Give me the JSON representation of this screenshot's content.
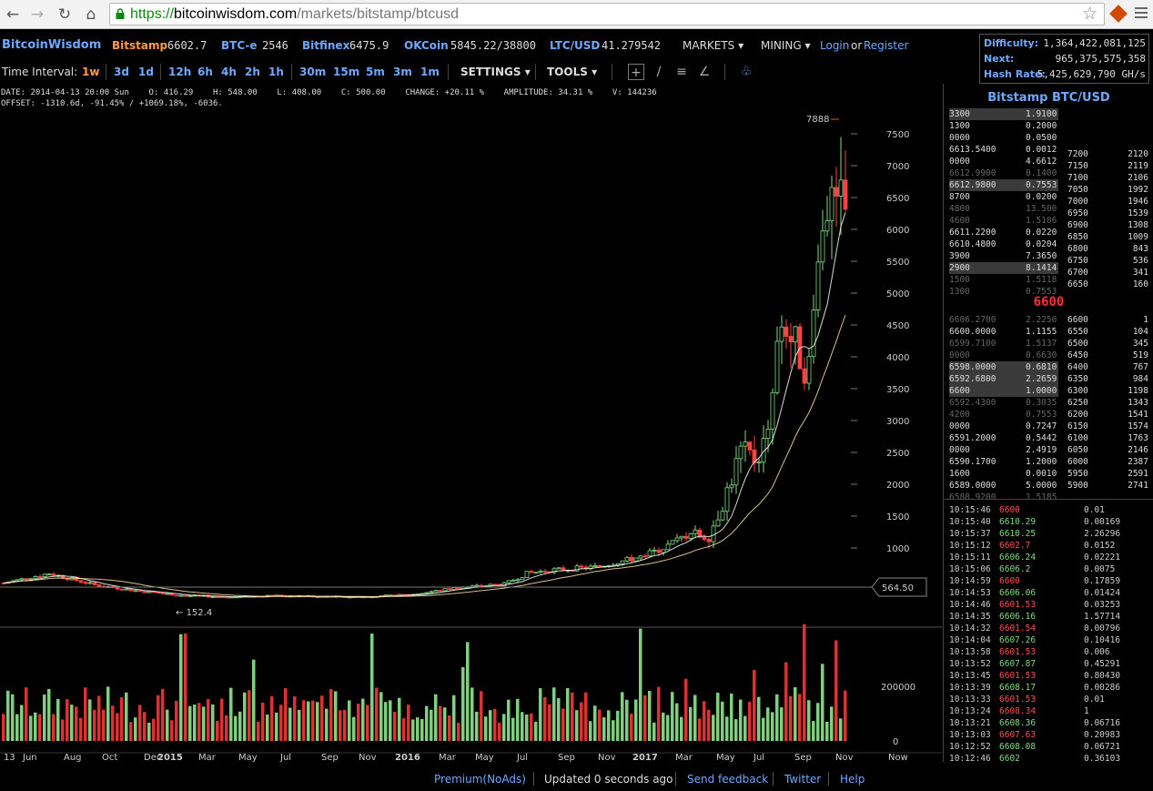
{
  "browser": {
    "url_scheme": "https://",
    "url_host": "bitcoinwisdom.com",
    "url_path": "/markets/bitstamp/btcusd"
  },
  "topbar": {
    "brand": "BitcoinWisdom",
    "markets": [
      {
        "name": "Bitstamp",
        "value": "6602.7",
        "active": true
      },
      {
        "name": "BTC-e",
        "value": "2546"
      },
      {
        "name": "Bitfinex",
        "value": "6475.9"
      },
      {
        "name": "OKCoin",
        "value": "5845.22/38800"
      },
      {
        "name": "LTC/USD",
        "value": "41.279542"
      }
    ],
    "markets_menu": "MARKETS",
    "mining_menu": "MINING",
    "login": "Login",
    "or": "or",
    "register": "Register"
  },
  "network": {
    "difficulty_label": "Difficulty:",
    "difficulty": "1,364,422,081,125",
    "next_label": "Next:",
    "next": "965,375,575,358",
    "hashrate_label": "Hash Rate:",
    "hashrate": "5,425,629,790 GH/s"
  },
  "intervals": {
    "label": "Time Interval:",
    "items": [
      "1w",
      "3d",
      "1d",
      "12h",
      "6h",
      "4h",
      "2h",
      "1h",
      "30m",
      "15m",
      "5m",
      "3m",
      "1m"
    ],
    "active": "1w",
    "settings": "SETTINGS",
    "tools": "TOOLS"
  },
  "ohlc": {
    "line1": "DATE: 2014-04-13 20:00 Sun    O: 416.29    H: 548.00    L: 408.00    C: 500.00    CHANGE: +20.11 %    AMPLITUDE: 34.31 %    V: 144236",
    "line2": "OFFSET: -1310.6d, -91.45% / +1069.18%, -6036."
  },
  "chart_data": {
    "type": "candlestick",
    "y_ticks": [
      1000,
      1500,
      2000,
      2500,
      3000,
      3500,
      4000,
      4500,
      5000,
      5500,
      6000,
      6500,
      7000,
      7500
    ],
    "ylim": [
      0,
      7900
    ],
    "high_marker": "7888",
    "low_marker": "152.4",
    "crosshair_label": "564.50",
    "volume_ticks": [
      "200000",
      "0"
    ],
    "x_labels": [
      "13",
      "Jun",
      "Aug",
      "Oct",
      "Dec",
      "2015",
      "Mar",
      "May",
      "Jul",
      "Sep",
      "Nov",
      "2016",
      "Mar",
      "May",
      "Jul",
      "Sep",
      "Nov",
      "2017",
      "Mar",
      "May",
      "Jul",
      "Sep",
      "Nov",
      "Now"
    ],
    "x_bold": [
      "2015",
      "2016",
      "2017"
    ]
  },
  "orderbook": {
    "title": "Bitstamp BTC/USD",
    "mid_price": "6600",
    "asks_left": [
      {
        "p": "3300",
        "a": "1.9100",
        "hl": true
      },
      {
        "p": "1300",
        "a": "0.2000"
      },
      {
        "p": "0000",
        "a": "0.0500"
      },
      {
        "p": "6613.5400",
        "a": "0.0012"
      },
      {
        "p": "0000",
        "a": "4.6612"
      },
      {
        "p": "6612.9900",
        "a": "0.1400",
        "dim": true
      },
      {
        "p": "6612.9800",
        "a": "0.7553",
        "hl": true
      },
      {
        "p": "8700",
        "a": "0.0200"
      },
      {
        "p": "4800",
        "a": "13.500",
        "dim": true
      },
      {
        "p": "4600",
        "a": "1.5106",
        "dim": true
      },
      {
        "p": "6611.2200",
        "a": "0.0220"
      },
      {
        "p": "6610.4800",
        "a": "0.0204"
      },
      {
        "p": "3900",
        "a": "7.3650"
      },
      {
        "p": "2900",
        "a": "8.1414",
        "hl": true
      },
      {
        "p": "1500",
        "a": "1.5118",
        "dim": true
      },
      {
        "p": "1300",
        "a": "0.7553",
        "dim": true
      }
    ],
    "bids_left": [
      {
        "p": "6606.2700",
        "a": "2.2250",
        "dim": true
      },
      {
        "p": "6600.0000",
        "a": "1.1155"
      },
      {
        "p": "6599.7100",
        "a": "1.5137",
        "dim": true
      },
      {
        "p": "0000",
        "a": "0.6630",
        "dim": true
      },
      {
        "p": "6598.0000",
        "a": "0.6810",
        "hl": true
      },
      {
        "p": "6592.6800",
        "a": "2.2659",
        "hl": true
      },
      {
        "p": "6600",
        "a": "1.0000",
        "hl": true
      },
      {
        "p": "6592.4300",
        "a": "0.3035",
        "dim": true
      },
      {
        "p": "4200",
        "a": "0.7553",
        "dim": true
      },
      {
        "p": "0000",
        "a": "0.7247"
      },
      {
        "p": "6591.2000",
        "a": "0.5442"
      },
      {
        "p": "0000",
        "a": "2.4919"
      },
      {
        "p": "6590.1700",
        "a": "1.2000"
      },
      {
        "p": "1600",
        "a": "0.0010"
      },
      {
        "p": "6589.0000",
        "a": "5.0000"
      },
      {
        "p": "6588.9200",
        "a": "1.5185",
        "dim": true
      }
    ],
    "asks_right": [
      {
        "p": "7200",
        "a": "2120"
      },
      {
        "p": "7150",
        "a": "2119"
      },
      {
        "p": "7100",
        "a": "2106"
      },
      {
        "p": "7050",
        "a": "1992"
      },
      {
        "p": "7000",
        "a": "1946"
      },
      {
        "p": "6950",
        "a": "1539"
      },
      {
        "p": "6900",
        "a": "1308"
      },
      {
        "p": "6850",
        "a": "1009"
      },
      {
        "p": "6800",
        "a": "843"
      },
      {
        "p": "6750",
        "a": "536"
      },
      {
        "p": "6700",
        "a": "341"
      },
      {
        "p": "6650",
        "a": "160"
      }
    ],
    "bids_right": [
      {
        "p": "6600",
        "a": "1"
      },
      {
        "p": "6550",
        "a": "104"
      },
      {
        "p": "6500",
        "a": "345"
      },
      {
        "p": "6450",
        "a": "519"
      },
      {
        "p": "6400",
        "a": "767"
      },
      {
        "p": "6350",
        "a": "984"
      },
      {
        "p": "6300",
        "a": "1198"
      },
      {
        "p": "6250",
        "a": "1343"
      },
      {
        "p": "6200",
        "a": "1541"
      },
      {
        "p": "6150",
        "a": "1574"
      },
      {
        "p": "6100",
        "a": "1763"
      },
      {
        "p": "6050",
        "a": "2146"
      },
      {
        "p": "6000",
        "a": "2387"
      },
      {
        "p": "5950",
        "a": "2591"
      },
      {
        "p": "5900",
        "a": "2741"
      }
    ]
  },
  "trades": [
    {
      "t": "10:15:46",
      "p": "6600",
      "a": "0.01",
      "dir": "dn"
    },
    {
      "t": "10:15:40",
      "p": "6610.29",
      "a": "0.00169",
      "dir": "up"
    },
    {
      "t": "10:15:37",
      "p": "6610.25",
      "a": "2.26296",
      "dir": "up"
    },
    {
      "t": "10:15:12",
      "p": "6602.7",
      "a": "0.0152",
      "dir": "dn"
    },
    {
      "t": "10:15:11",
      "p": "6606.24",
      "a": "0.02221",
      "dir": "up"
    },
    {
      "t": "10:15:06",
      "p": "6606.2",
      "a": "0.0075",
      "dir": "up"
    },
    {
      "t": "10:14:59",
      "p": "6600",
      "a": "0.17859",
      "dir": "dn"
    },
    {
      "t": "10:14:53",
      "p": "6606.06",
      "a": "0.01424",
      "dir": "up"
    },
    {
      "t": "10:14:46",
      "p": "6601.53",
      "a": "0.03253",
      "dir": "dn"
    },
    {
      "t": "10:14:35",
      "p": "6606.16",
      "a": "1.57714",
      "dir": "up"
    },
    {
      "t": "10:14:32",
      "p": "6601.54",
      "a": "0.00796",
      "dir": "dn"
    },
    {
      "t": "10:14:04",
      "p": "6607.26",
      "a": "0.10416",
      "dir": "up"
    },
    {
      "t": "10:13:58",
      "p": "6601.53",
      "a": "0.006",
      "dir": "dn"
    },
    {
      "t": "10:13:52",
      "p": "6607.87",
      "a": "0.45291",
      "dir": "up"
    },
    {
      "t": "10:13:45",
      "p": "6601.53",
      "a": "0.80430",
      "dir": "dn"
    },
    {
      "t": "10:13:39",
      "p": "6608.17",
      "a": "0.00286",
      "dir": "up"
    },
    {
      "t": "10:13:33",
      "p": "6601.53",
      "a": "0.01",
      "dir": "dn"
    },
    {
      "t": "10:13:24",
      "p": "6608.34",
      "a": "1",
      "dir": "dn"
    },
    {
      "t": "10:13:21",
      "p": "6608.36",
      "a": "0.06716",
      "dir": "up"
    },
    {
      "t": "10:13:03",
      "p": "6607.63",
      "a": "0.20983",
      "dir": "dn"
    },
    {
      "t": "10:12:52",
      "p": "6608.08",
      "a": "0.06721",
      "dir": "up"
    },
    {
      "t": "10:12:46",
      "p": "6602",
      "a": "0.36103",
      "dir": "up"
    }
  ],
  "footer": {
    "premium": "Premium(NoAds)",
    "updated": "Updated 0 seconds ago",
    "feedback": "Send feedback",
    "twitter": "Twitter",
    "help": "Help"
  },
  "colors": {
    "up": "#7fdc7f",
    "down": "#ff4040",
    "link": "#6fa8ff",
    "active": "#ff9c3c"
  }
}
